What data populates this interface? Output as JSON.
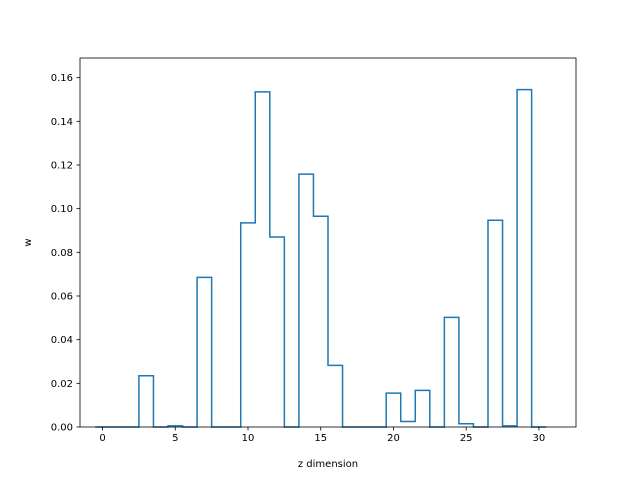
{
  "chart_data": {
    "type": "line",
    "style": "step-histogram",
    "title": "",
    "xlabel": "z dimension",
    "ylabel": "w",
    "xlim": [
      -1.55,
      32.55
    ],
    "ylim": [
      0,
      0.169
    ],
    "x_ticks": [
      0,
      5,
      10,
      15,
      20,
      25,
      30
    ],
    "x_tick_labels": [
      "0",
      "5",
      "10",
      "15",
      "20",
      "25",
      "30"
    ],
    "y_ticks": [
      0.0,
      0.02,
      0.04,
      0.06,
      0.08,
      0.1,
      0.12,
      0.14,
      0.16
    ],
    "y_tick_labels": [
      "0.00",
      "0.02",
      "0.04",
      "0.06",
      "0.08",
      "0.10",
      "0.12",
      "0.14",
      "0.16"
    ],
    "grid": false,
    "line_color": "#1f77b4",
    "x": [
      0,
      1,
      2,
      3,
      4,
      5,
      6,
      7,
      8,
      9,
      10,
      11,
      12,
      13,
      14,
      15,
      16,
      17,
      18,
      19,
      20,
      21,
      22,
      23,
      24,
      25,
      26,
      27,
      28,
      29,
      30
    ],
    "values": [
      0.0,
      0.0,
      0.0,
      0.0235,
      0.0,
      0.0005,
      0.0,
      0.0685,
      0.0,
      0.0,
      0.0935,
      0.1535,
      0.087,
      0.0,
      0.1158,
      0.0965,
      0.0282,
      0.0,
      0.0,
      0.0,
      0.0155,
      0.0025,
      0.0168,
      0.0,
      0.0502,
      0.0015,
      0.0,
      0.0947,
      0.0005,
      0.1545,
      0.0
    ]
  }
}
